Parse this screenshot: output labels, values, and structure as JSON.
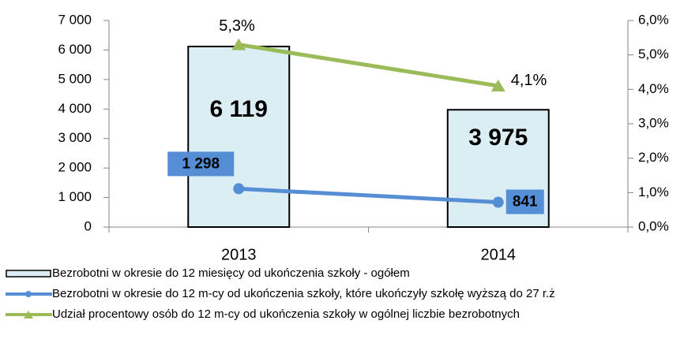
{
  "chart_data": {
    "type": "bar",
    "categories": [
      "2013",
      "2014"
    ],
    "series": [
      {
        "name": "Bezrobotni w okresie do 12 miesięcy od ukończenia szkoły - ogółem",
        "type": "bar",
        "color": "#dbeef4",
        "values": [
          6119,
          3975
        ],
        "value_labels": [
          "6 119",
          "3 975"
        ]
      },
      {
        "name": "Bezrobotni w okresie do 12 m-cy od ukończenia szkoły,  które ukończyły szkołę wyższą do 27 r.ż",
        "type": "line",
        "color": "#558ed5",
        "values": [
          1298,
          841
        ],
        "value_labels": [
          "1 298",
          "841"
        ]
      },
      {
        "name": "Udział procentowy osób do 12 m-cy od ukończenia szkoły w ogólnej liczbie bezrobotnych",
        "type": "line",
        "axis": "y2",
        "color": "#9bbb59",
        "values": [
          5.3,
          4.1
        ],
        "value_labels": [
          "5,3%",
          "4,1%"
        ]
      }
    ],
    "ylim": [
      0,
      7000
    ],
    "yticks": [
      0,
      {
        "value": 1000,
        "label": "1 000"
      },
      {
        "value": 2000,
        "label": "2 000"
      },
      {
        "value": 3000,
        "label": "3 000"
      },
      {
        "value": 4000,
        "label": "4 000"
      },
      {
        "value": 5000,
        "label": "5 000"
      },
      {
        "value": 6000,
        "label": "6 000"
      },
      {
        "value": 7000,
        "label": "7 000"
      }
    ],
    "y2lim": [
      0,
      6
    ],
    "y2ticks": [
      {
        "value": 0,
        "label": "0,0%"
      },
      {
        "value": 1,
        "label": "1,0%"
      },
      {
        "value": 2,
        "label": "2,0%"
      },
      {
        "value": 3,
        "label": "3,0%"
      },
      {
        "value": 4,
        "label": "4,0%"
      },
      {
        "value": 5,
        "label": "5,0%"
      },
      {
        "value": 6,
        "label": "6,0%"
      }
    ],
    "legend": "bottom"
  }
}
